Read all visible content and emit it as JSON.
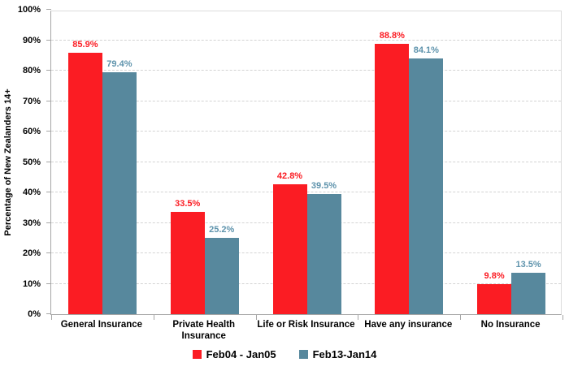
{
  "chart_data": {
    "type": "bar",
    "title": "",
    "xlabel": "",
    "ylabel": "Percentage of New Zealanders 14+",
    "categories": [
      "General Insurance",
      "Private Health Insurance",
      "Life or Risk Insurance",
      "Have any insurance",
      "No Insurance"
    ],
    "series": [
      {
        "name": "Feb04 - Jan05",
        "color": "#fb1c23",
        "label_color": "#fb1c23",
        "values": [
          85.9,
          33.5,
          42.8,
          88.8,
          9.8
        ]
      },
      {
        "name": "Feb13-Jan14",
        "color": "#57889d",
        "label_color": "#5e93ac",
        "values": [
          79.4,
          25.2,
          39.5,
          84.1,
          13.5
        ]
      }
    ],
    "value_suffix": "%",
    "ylim": [
      0,
      100
    ],
    "ytick_step": 10,
    "ytick_labels": [
      "0%",
      "10%",
      "20%",
      "30%",
      "40%",
      "50%",
      "60%",
      "70%",
      "80%",
      "90%",
      "100%"
    ],
    "grid": "horizontal-dashed",
    "legend_position": "bottom"
  },
  "colors": {
    "background": "#ffffff",
    "axis_line": "#a6a6a6",
    "plot_border": "#dcdcdc",
    "gridline": "#d3d3d3",
    "text": "#000000"
  }
}
